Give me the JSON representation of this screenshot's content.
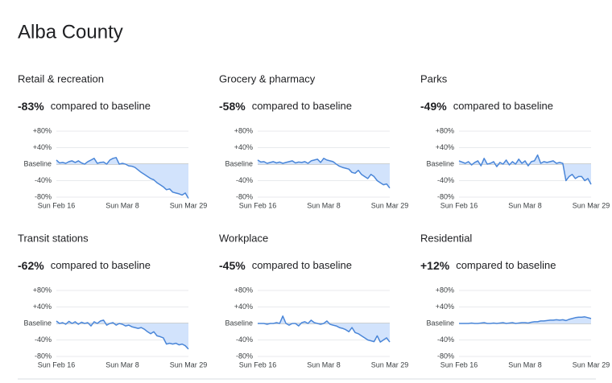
{
  "header": {
    "title": "Alba County"
  },
  "chart_data": [
    {
      "type": "line",
      "title": "Retail & recreation",
      "change": "-83%",
      "change_note": "compared to baseline",
      "categories": [
        "Sun Feb 16",
        null,
        null,
        null,
        null,
        null,
        null,
        null,
        null,
        null,
        null,
        null,
        null,
        null,
        null,
        null,
        null,
        null,
        null,
        null,
        null,
        "Sun Mar 8",
        null,
        null,
        null,
        null,
        null,
        null,
        null,
        null,
        null,
        null,
        null,
        null,
        null,
        null,
        null,
        null,
        null,
        null,
        null,
        null,
        "Sun Mar 29"
      ],
      "values": [
        10,
        3,
        4,
        2,
        6,
        8,
        4,
        8,
        3,
        0,
        6,
        10,
        14,
        2,
        4,
        5,
        0,
        10,
        14,
        16,
        0,
        2,
        0,
        -4,
        -5,
        -8,
        -14,
        -20,
        -25,
        -30,
        -35,
        -38,
        -45,
        -50,
        -55,
        -62,
        -60,
        -68,
        -70,
        -72,
        -75,
        -70,
        -83
      ],
      "color": "#4a86d8",
      "ylim": [
        -80,
        80
      ],
      "yticks": [
        {
          "value": 80,
          "label": "+80%"
        },
        {
          "value": 40,
          "label": "+40%"
        },
        {
          "value": 0,
          "label": "Baseline"
        },
        {
          "value": -40,
          "label": "-40%"
        },
        {
          "value": -80,
          "label": "-80%"
        }
      ]
    },
    {
      "type": "line",
      "title": "Grocery & pharmacy",
      "change": "-58%",
      "change_note": "compared to baseline",
      "categories": [
        "Sun Feb 16",
        null,
        null,
        null,
        null,
        null,
        null,
        null,
        null,
        null,
        null,
        null,
        null,
        null,
        null,
        null,
        null,
        null,
        null,
        null,
        null,
        "Sun Mar 8",
        null,
        null,
        null,
        null,
        null,
        null,
        null,
        null,
        null,
        null,
        null,
        null,
        null,
        null,
        null,
        null,
        null,
        null,
        null,
        null,
        "Sun Mar 29"
      ],
      "values": [
        10,
        5,
        6,
        2,
        4,
        6,
        3,
        5,
        2,
        4,
        6,
        8,
        3,
        5,
        4,
        6,
        2,
        8,
        10,
        12,
        4,
        14,
        10,
        8,
        6,
        0,
        -5,
        -8,
        -10,
        -12,
        -20,
        -22,
        -15,
        -25,
        -30,
        -35,
        -25,
        -30,
        -40,
        -45,
        -50,
        -48,
        -58
      ],
      "color": "#4a86d8",
      "ylim": [
        -80,
        80
      ],
      "yticks": [
        {
          "value": 80,
          "label": "+80%"
        },
        {
          "value": 40,
          "label": "+40%"
        },
        {
          "value": 0,
          "label": "Baseline"
        },
        {
          "value": -40,
          "label": "-40%"
        },
        {
          "value": -80,
          "label": "-80%"
        }
      ]
    },
    {
      "type": "line",
      "title": "Parks",
      "change": "-49%",
      "change_note": "compared to baseline",
      "categories": [
        "Sun Feb 16",
        null,
        null,
        null,
        null,
        null,
        null,
        null,
        null,
        null,
        null,
        null,
        null,
        null,
        null,
        null,
        null,
        null,
        null,
        null,
        null,
        "Sun Mar 8",
        null,
        null,
        null,
        null,
        null,
        null,
        null,
        null,
        null,
        null,
        null,
        null,
        null,
        null,
        null,
        null,
        null,
        null,
        null,
        null,
        "Sun Mar 29"
      ],
      "values": [
        8,
        5,
        2,
        6,
        -2,
        4,
        8,
        -4,
        14,
        0,
        2,
        6,
        -6,
        4,
        0,
        10,
        -2,
        6,
        0,
        12,
        2,
        8,
        -4,
        6,
        8,
        22,
        2,
        6,
        4,
        6,
        8,
        2,
        4,
        2,
        -40,
        -30,
        -25,
        -35,
        -30,
        -30,
        -40,
        -35,
        -49
      ],
      "color": "#4a86d8",
      "ylim": [
        -80,
        80
      ],
      "yticks": [
        {
          "value": 80,
          "label": "+80%"
        },
        {
          "value": 40,
          "label": "+40%"
        },
        {
          "value": 0,
          "label": "Baseline"
        },
        {
          "value": -40,
          "label": "-40%"
        },
        {
          "value": -80,
          "label": "-80%"
        }
      ]
    },
    {
      "type": "line",
      "title": "Transit stations",
      "change": "-62%",
      "change_note": "compared to baseline",
      "categories": [
        "Sun Feb 16",
        null,
        null,
        null,
        null,
        null,
        null,
        null,
        null,
        null,
        null,
        null,
        null,
        null,
        null,
        null,
        null,
        null,
        null,
        null,
        null,
        "Sun Mar 8",
        null,
        null,
        null,
        null,
        null,
        null,
        null,
        null,
        null,
        null,
        null,
        null,
        null,
        null,
        null,
        null,
        null,
        null,
        null,
        null,
        "Sun Mar 29"
      ],
      "values": [
        6,
        0,
        2,
        -2,
        5,
        0,
        4,
        -2,
        3,
        0,
        2,
        -6,
        4,
        0,
        6,
        8,
        -4,
        0,
        2,
        -4,
        0,
        -2,
        -6,
        -4,
        -8,
        -10,
        -12,
        -10,
        -14,
        -20,
        -25,
        -20,
        -30,
        -32,
        -35,
        -50,
        -48,
        -50,
        -48,
        -52,
        -50,
        -54,
        -62
      ],
      "color": "#4a86d8",
      "ylim": [
        -80,
        80
      ],
      "yticks": [
        {
          "value": 80,
          "label": "+80%"
        },
        {
          "value": 40,
          "label": "+40%"
        },
        {
          "value": 0,
          "label": "Baseline"
        },
        {
          "value": -40,
          "label": "-40%"
        },
        {
          "value": -80,
          "label": "-80%"
        }
      ]
    },
    {
      "type": "line",
      "title": "Workplace",
      "change": "-45%",
      "change_note": "compared to baseline",
      "categories": [
        "Sun Feb 16",
        null,
        null,
        null,
        null,
        null,
        null,
        null,
        null,
        null,
        null,
        null,
        null,
        null,
        null,
        null,
        null,
        null,
        null,
        null,
        null,
        "Sun Mar 8",
        null,
        null,
        null,
        null,
        null,
        null,
        null,
        null,
        null,
        null,
        null,
        null,
        null,
        null,
        null,
        null,
        null,
        null,
        null,
        null,
        "Sun Mar 29"
      ],
      "values": [
        0,
        0,
        0,
        -2,
        0,
        0,
        2,
        0,
        18,
        0,
        -4,
        0,
        0,
        -6,
        2,
        4,
        0,
        8,
        2,
        0,
        -2,
        0,
        6,
        -2,
        -4,
        -6,
        -10,
        -12,
        -15,
        -20,
        -10,
        -22,
        -25,
        -30,
        -35,
        -40,
        -42,
        -44,
        -30,
        -45,
        -40,
        -35,
        -45
      ],
      "color": "#4a86d8",
      "ylim": [
        -80,
        80
      ],
      "yticks": [
        {
          "value": 80,
          "label": "+80%"
        },
        {
          "value": 40,
          "label": "+40%"
        },
        {
          "value": 0,
          "label": "Baseline"
        },
        {
          "value": -40,
          "label": "-40%"
        },
        {
          "value": -80,
          "label": "-80%"
        }
      ]
    },
    {
      "type": "line",
      "title": "Residential",
      "change": "+12%",
      "change_note": "compared to baseline",
      "categories": [
        "Sun Feb 16",
        null,
        null,
        null,
        null,
        null,
        null,
        null,
        null,
        null,
        null,
        null,
        null,
        null,
        null,
        null,
        null,
        null,
        null,
        null,
        null,
        "Sun Mar 8",
        null,
        null,
        null,
        null,
        null,
        null,
        null,
        null,
        null,
        null,
        null,
        null,
        null,
        null,
        null,
        null,
        null,
        null,
        null,
        null,
        "Sun Mar 29"
      ],
      "values": [
        0,
        0,
        0,
        0,
        1,
        0,
        0,
        1,
        2,
        0,
        0,
        1,
        0,
        1,
        2,
        0,
        1,
        2,
        0,
        1,
        2,
        2,
        1,
        3,
        4,
        4,
        6,
        6,
        7,
        8,
        8,
        9,
        8,
        9,
        7,
        10,
        12,
        14,
        15,
        15,
        16,
        14,
        12
      ],
      "color": "#4a86d8",
      "ylim": [
        -80,
        80
      ],
      "yticks": [
        {
          "value": 80,
          "label": "+80%"
        },
        {
          "value": 40,
          "label": "+40%"
        },
        {
          "value": 0,
          "label": "Baseline"
        },
        {
          "value": -40,
          "label": "-40%"
        },
        {
          "value": -80,
          "label": "-80%"
        }
      ]
    }
  ]
}
